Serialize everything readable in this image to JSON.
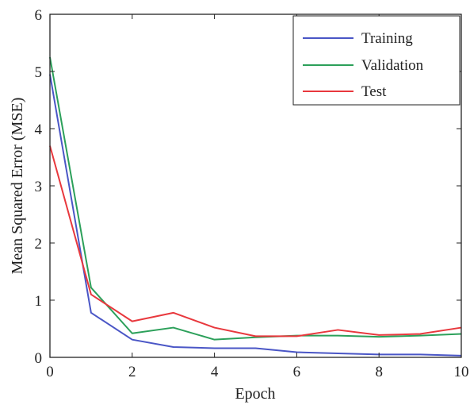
{
  "chart_data": {
    "type": "line",
    "title": "",
    "xlabel": "Epoch",
    "ylabel": "Mean Squared Error (MSE)",
    "xlim": [
      0,
      10
    ],
    "ylim": [
      0,
      6
    ],
    "xticks": [
      0,
      2,
      4,
      6,
      8,
      10
    ],
    "yticks": [
      0,
      1,
      2,
      3,
      4,
      5,
      6
    ],
    "xtick_labels": [
      "0",
      "2",
      "4",
      "6",
      "8",
      "10"
    ],
    "ytick_labels": [
      "0",
      "1",
      "2",
      "3",
      "4",
      "5",
      "6"
    ],
    "grid": false,
    "legend_position": "top-right",
    "x": [
      0,
      1,
      2,
      3,
      4,
      5,
      6,
      7,
      8,
      9,
      10
    ],
    "series": [
      {
        "name": "Training",
        "color": "#4a56c6",
        "values": [
          4.95,
          0.78,
          0.31,
          0.18,
          0.16,
          0.16,
          0.09,
          0.07,
          0.05,
          0.05,
          0.03
        ]
      },
      {
        "name": "Validation",
        "color": "#2ca05a",
        "values": [
          5.25,
          1.22,
          0.42,
          0.52,
          0.31,
          0.35,
          0.38,
          0.38,
          0.36,
          0.38,
          0.41
        ]
      },
      {
        "name": "Test",
        "color": "#e8383d",
        "values": [
          3.7,
          1.1,
          0.63,
          0.78,
          0.52,
          0.37,
          0.37,
          0.48,
          0.39,
          0.41,
          0.52
        ]
      }
    ]
  }
}
